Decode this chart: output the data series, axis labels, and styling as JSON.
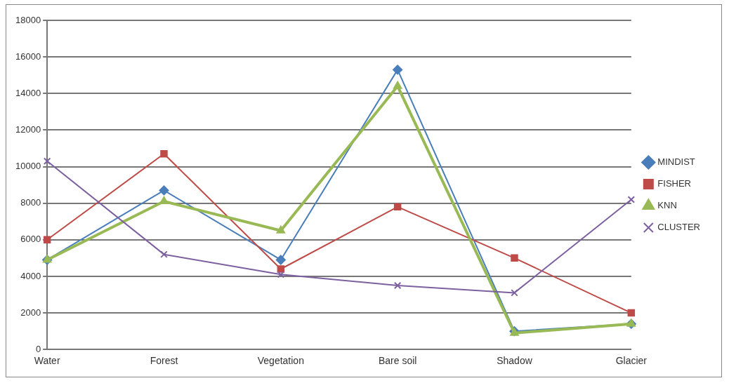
{
  "chart_data": {
    "type": "line",
    "categories": [
      "Water",
      "Forest",
      "Vegetation",
      "Bare soil",
      "Shadow",
      "Glacier"
    ],
    "series": [
      {
        "name": "MINDIST",
        "color": "#4a7ebb",
        "marker": "diamond",
        "values": [
          4900,
          8700,
          4900,
          15300,
          1000,
          1400
        ]
      },
      {
        "name": "FISHER",
        "color": "#be4b48",
        "marker": "square",
        "values": [
          6000,
          10700,
          4400,
          7800,
          5000,
          2000
        ]
      },
      {
        "name": "KNN",
        "color": "#98b954",
        "marker": "triangle",
        "values": [
          4900,
          8100,
          6500,
          14400,
          900,
          1400
        ]
      },
      {
        "name": "CLUSTER",
        "color": "#7d60a0",
        "marker": "cross",
        "values": [
          10300,
          5200,
          4100,
          3500,
          3100,
          8200
        ]
      }
    ],
    "ylim": [
      0,
      18000
    ],
    "yticks": [
      0,
      2000,
      4000,
      6000,
      8000,
      10000,
      12000,
      14000,
      16000,
      18000
    ],
    "grid": "y",
    "legend": "right",
    "line_style": "solid"
  }
}
